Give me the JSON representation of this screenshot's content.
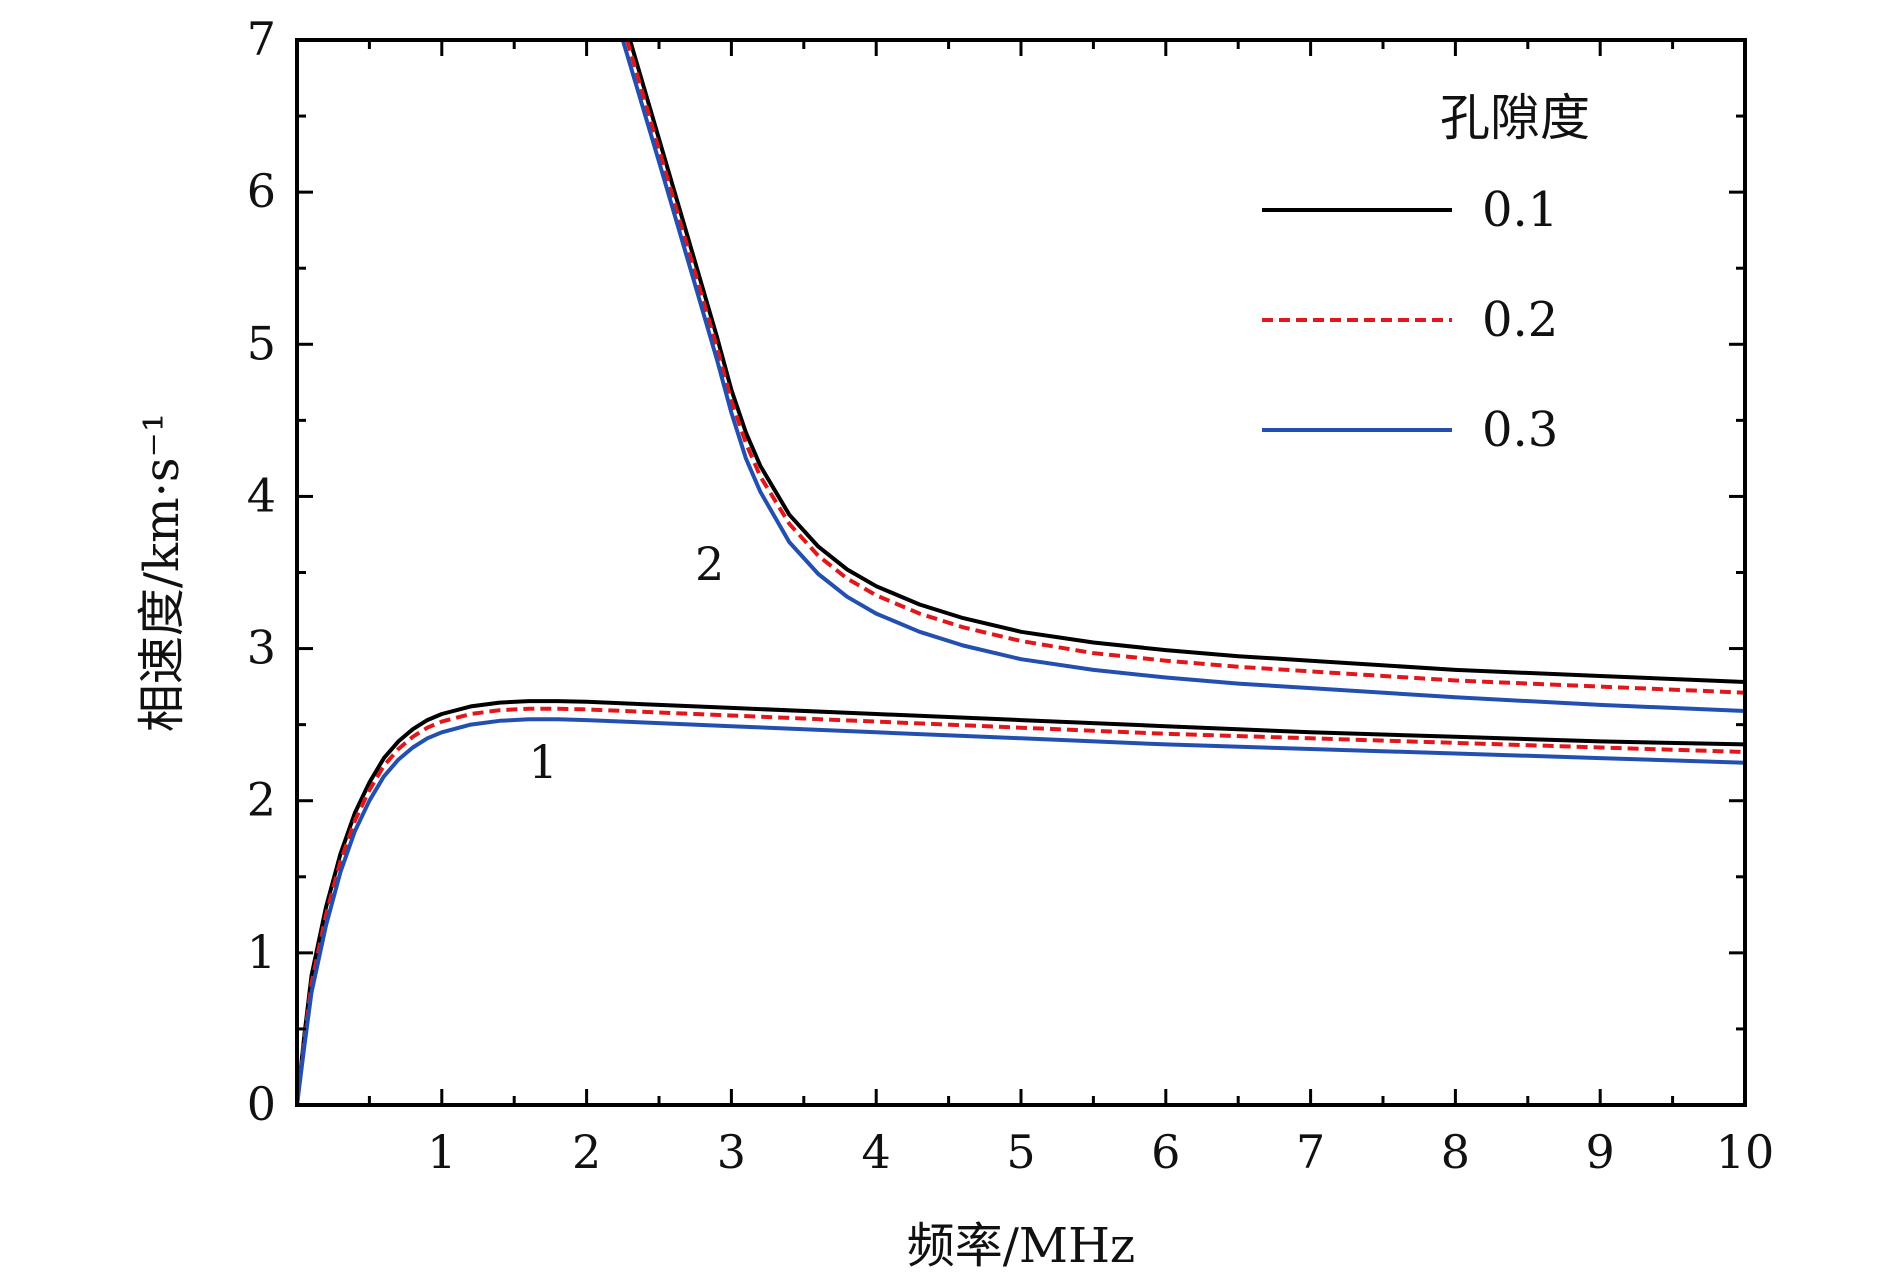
{
  "chart_data": {
    "type": "line",
    "title": "",
    "xlabel": "频率/MHz",
    "ylabel": "相速度/km·s⁻¹",
    "xlim": [
      0,
      10
    ],
    "ylim": [
      0,
      7
    ],
    "xticks": [
      1,
      2,
      3,
      4,
      5,
      6,
      7,
      8,
      9,
      10
    ],
    "yticks": [
      0,
      1,
      2,
      3,
      4,
      5,
      6,
      7
    ],
    "grid": false,
    "legend": {
      "title": "孔隙度",
      "position": "top-right"
    },
    "series": [
      {
        "name": "0.1",
        "color": "#000000",
        "dash": "solid",
        "mode1": {
          "x": [
            0,
            0.05,
            0.1,
            0.2,
            0.3,
            0.4,
            0.5,
            0.6,
            0.7,
            0.8,
            0.9,
            1.0,
            1.2,
            1.4,
            1.6,
            1.8,
            2.0,
            2.5,
            3.0,
            4.0,
            5.0,
            6.0,
            7.0,
            8.0,
            9.0,
            10.0
          ],
          "y": [
            0,
            0.45,
            0.85,
            1.3,
            1.65,
            1.92,
            2.12,
            2.28,
            2.39,
            2.47,
            2.53,
            2.57,
            2.62,
            2.645,
            2.655,
            2.655,
            2.65,
            2.63,
            2.61,
            2.57,
            2.53,
            2.49,
            2.45,
            2.42,
            2.39,
            2.37
          ]
        },
        "mode2": {
          "x": [
            2.3,
            2.5,
            2.7,
            2.9,
            3.0,
            3.1,
            3.2,
            3.4,
            3.6,
            3.8,
            4.0,
            4.3,
            4.6,
            5.0,
            5.5,
            6.0,
            6.5,
            7.0,
            8.0,
            9.0,
            10.0
          ],
          "y": [
            7.0,
            6.35,
            5.7,
            5.05,
            4.7,
            4.42,
            4.2,
            3.88,
            3.67,
            3.52,
            3.41,
            3.29,
            3.2,
            3.11,
            3.04,
            2.99,
            2.95,
            2.92,
            2.86,
            2.82,
            2.78
          ]
        }
      },
      {
        "name": "0.2",
        "color": "#e0181c",
        "dash": "dashed",
        "mode1": {
          "x": [
            0,
            0.05,
            0.1,
            0.2,
            0.3,
            0.4,
            0.5,
            0.6,
            0.7,
            0.8,
            0.9,
            1.0,
            1.2,
            1.4,
            1.6,
            1.8,
            2.0,
            2.5,
            3.0,
            4.0,
            5.0,
            6.0,
            7.0,
            8.0,
            9.0,
            10.0
          ],
          "y": [
            0,
            0.42,
            0.8,
            1.25,
            1.6,
            1.87,
            2.07,
            2.23,
            2.34,
            2.42,
            2.48,
            2.52,
            2.57,
            2.595,
            2.605,
            2.605,
            2.6,
            2.58,
            2.56,
            2.52,
            2.48,
            2.44,
            2.41,
            2.38,
            2.35,
            2.32
          ]
        },
        "mode2": {
          "x": [
            2.28,
            2.5,
            2.7,
            2.9,
            3.0,
            3.1,
            3.2,
            3.4,
            3.6,
            3.8,
            4.0,
            4.3,
            4.6,
            5.0,
            5.5,
            6.0,
            6.5,
            7.0,
            8.0,
            9.0,
            10.0
          ],
          "y": [
            7.0,
            6.28,
            5.63,
            4.98,
            4.63,
            4.35,
            4.13,
            3.82,
            3.61,
            3.46,
            3.35,
            3.23,
            3.14,
            3.05,
            2.97,
            2.92,
            2.88,
            2.85,
            2.79,
            2.75,
            2.71
          ]
        }
      },
      {
        "name": "0.3",
        "color": "#2350b0",
        "dash": "solid",
        "mode1": {
          "x": [
            0,
            0.05,
            0.1,
            0.2,
            0.3,
            0.4,
            0.5,
            0.6,
            0.7,
            0.8,
            0.9,
            1.0,
            1.2,
            1.4,
            1.6,
            1.8,
            2.0,
            2.5,
            3.0,
            4.0,
            5.0,
            6.0,
            7.0,
            8.0,
            9.0,
            10.0
          ],
          "y": [
            0,
            0.38,
            0.74,
            1.18,
            1.53,
            1.8,
            2.0,
            2.16,
            2.27,
            2.35,
            2.41,
            2.45,
            2.5,
            2.525,
            2.535,
            2.535,
            2.53,
            2.51,
            2.49,
            2.45,
            2.41,
            2.37,
            2.34,
            2.31,
            2.28,
            2.25
          ]
        },
        "mode2": {
          "x": [
            2.25,
            2.5,
            2.7,
            2.9,
            3.0,
            3.1,
            3.2,
            3.4,
            3.6,
            3.8,
            4.0,
            4.3,
            4.6,
            5.0,
            5.5,
            6.0,
            6.5,
            7.0,
            8.0,
            9.0,
            10.0
          ],
          "y": [
            7.0,
            6.2,
            5.55,
            4.9,
            4.55,
            4.25,
            4.03,
            3.7,
            3.49,
            3.34,
            3.23,
            3.11,
            3.02,
            2.93,
            2.86,
            2.81,
            2.77,
            2.74,
            2.68,
            2.63,
            2.59
          ]
        }
      }
    ],
    "annotations": [
      {
        "text": "1",
        "x": 1.7,
        "y": 2.15
      },
      {
        "text": "2",
        "x": 2.85,
        "y": 3.45
      }
    ]
  }
}
